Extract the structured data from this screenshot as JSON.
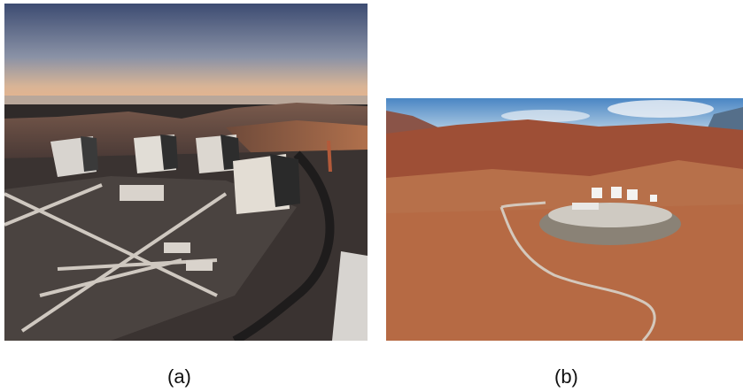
{
  "figure": {
    "panels": [
      {
        "label": "(a)",
        "scene": "telescope-domes-at-dusk",
        "sky_top": "#3d4c72",
        "sky_horizon": "#e7b58e",
        "ground": "#3a3331"
      },
      {
        "label": "(b)",
        "scene": "observatory-on-mountain-summit",
        "sky_top": "#4a86c4",
        "terrain": "#a85a3a",
        "ground": "#b66a44"
      }
    ]
  }
}
